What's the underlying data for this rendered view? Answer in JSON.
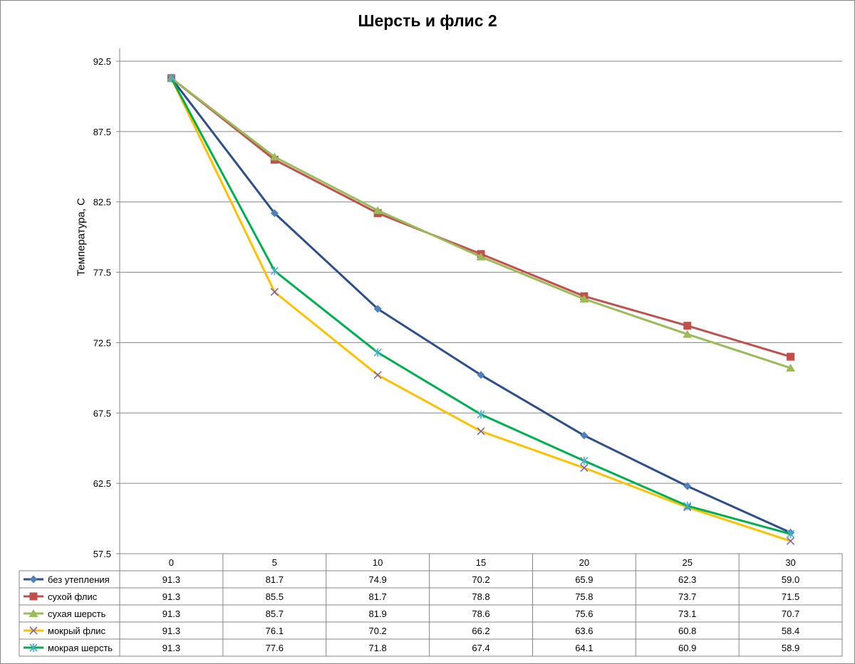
{
  "chart_data": {
    "type": "line",
    "title": "Шерсть и флис 2",
    "ylabel": "Температура, С",
    "xlabel": "",
    "ylim": [
      57.5,
      92.5
    ],
    "y_ticks": [
      "57.5",
      "62.5",
      "67.5",
      "72.5",
      "77.5",
      "82.5",
      "87.5",
      "92.5"
    ],
    "categories": [
      "0",
      "5",
      "10",
      "15",
      "20",
      "25",
      "30"
    ],
    "grid": "horizontal",
    "legend": "data-table",
    "series": [
      {
        "name": "без утепления",
        "color": "#2E4F8C",
        "marker_color": "#4F81BD",
        "marker": "diamond",
        "values": [
          91.3,
          81.7,
          74.9,
          70.2,
          65.9,
          62.3,
          59.0
        ],
        "labels": [
          "91.3",
          "81.7",
          "74.9",
          "70.2",
          "65.9",
          "62.3",
          "59.0"
        ]
      },
      {
        "name": "сухой флис",
        "color": "#C0504D",
        "marker_color": "#C0504D",
        "marker": "square",
        "values": [
          91.3,
          85.5,
          81.7,
          78.8,
          75.8,
          73.7,
          71.5
        ],
        "labels": [
          "91.3",
          "85.5",
          "81.7",
          "78.8",
          "75.8",
          "73.7",
          "71.5"
        ]
      },
      {
        "name": "сухая шерсть",
        "color": "#9BBB59",
        "marker_color": "#9BBB59",
        "marker": "triangle",
        "values": [
          91.3,
          85.7,
          81.9,
          78.6,
          75.6,
          73.1,
          70.7
        ],
        "labels": [
          "91.3",
          "85.7",
          "81.9",
          "78.6",
          "75.6",
          "73.1",
          "70.7"
        ]
      },
      {
        "name": "мокрый флис",
        "color": "#FFC000",
        "marker_color": "#8064A2",
        "marker": "x",
        "values": [
          91.3,
          76.1,
          70.2,
          66.2,
          63.6,
          60.8,
          58.4
        ],
        "labels": [
          "91.3",
          "76.1",
          "70.2",
          "66.2",
          "63.6",
          "60.8",
          "58.4"
        ]
      },
      {
        "name": "мокрая шерсть",
        "color": "#00B050",
        "marker_color": "#4BACC6",
        "marker": "star",
        "values": [
          91.3,
          77.6,
          71.8,
          67.4,
          64.1,
          60.9,
          58.9
        ],
        "labels": [
          "91.3",
          "77.6",
          "71.8",
          "67.4",
          "64.1",
          "60.9",
          "58.9"
        ]
      }
    ]
  }
}
